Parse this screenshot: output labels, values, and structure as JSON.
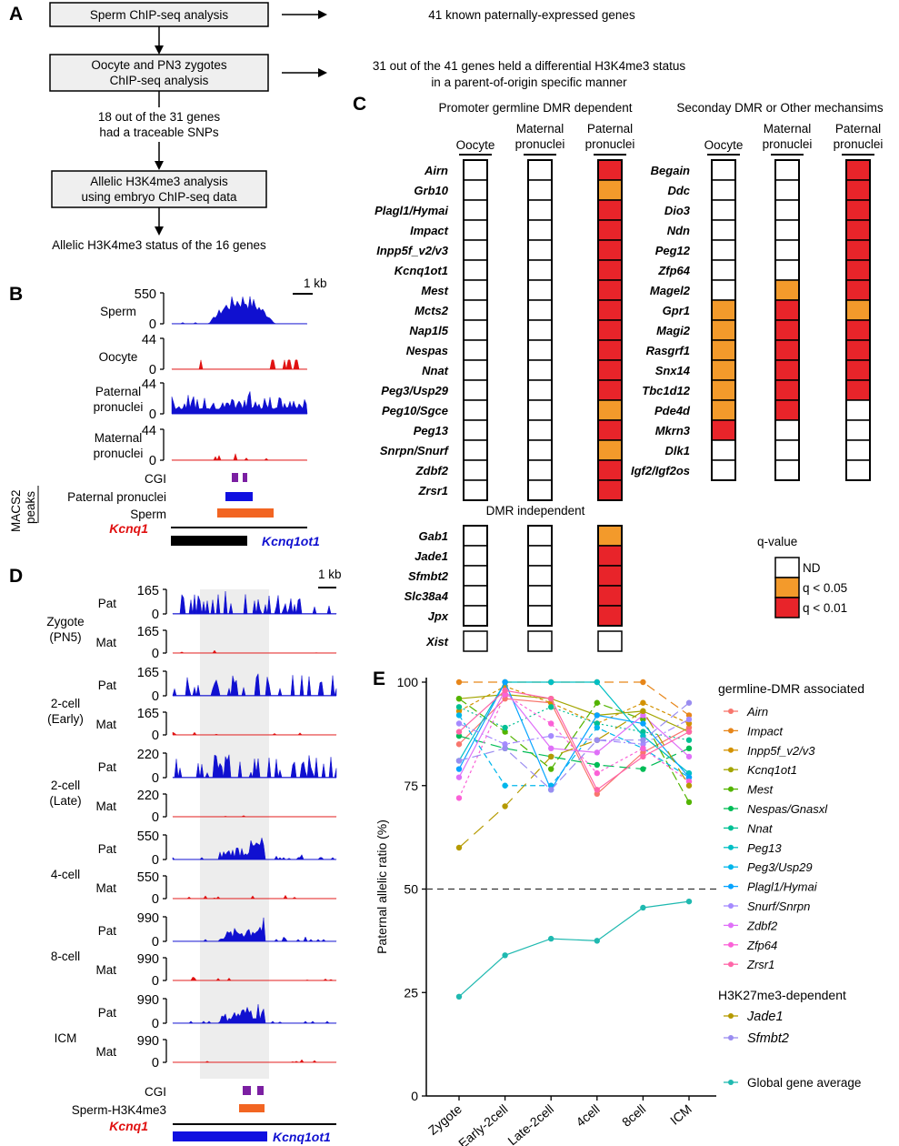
{
  "panels": {
    "a": "A",
    "b": "B",
    "c": "C",
    "d": "D",
    "e": "E"
  },
  "panel_a": {
    "box1": "Sperm ChIP-seq analysis",
    "box2_l1": "Oocyte and PN3 zygotes",
    "box2_l2": "ChIP-seq analysis",
    "mid_l1": "18 out of the 31 genes",
    "mid_l2": "had a traceable SNPs",
    "box3_l1": "Allelic H3K4me3 analysis",
    "box3_l2": "using embryo ChIP-seq data",
    "bottom": "Allelic H3K4me3 status of the 16 genes",
    "res1": "41 known paternally-expressed genes",
    "res2_l1": "31 out of the 41 genes held a differential H3K4me3 status",
    "res2_l2": "in a parent-of-origin specific manner"
  },
  "panel_b": {
    "scale": "1 kb",
    "tracks": [
      {
        "label_l1": "Sperm",
        "label_l2": "",
        "max": "550",
        "min": "0",
        "color": "#1010d0"
      },
      {
        "label_l1": "Oocyte",
        "label_l2": "",
        "max": "44",
        "min": "0",
        "color": "#e01010"
      },
      {
        "label_l1": "Paternal",
        "label_l2": "pronuclei",
        "max": "44",
        "min": "0",
        "color": "#1010d0"
      },
      {
        "label_l1": "Maternal",
        "label_l2": "pronuclei",
        "max": "44",
        "min": "0",
        "color": "#e01010"
      }
    ],
    "cgi": "CGI",
    "peak_pat": "Paternal pronuclei",
    "peak_sperm": "Sperm",
    "macs_l1": "MACS2",
    "macs_l2": "peaks",
    "gene1": "Kcnq1",
    "gene2": "Kcnq1ot1"
  },
  "panel_c": {
    "left_title": "Promoter germline DMR dependent",
    "right_title": "Seconday DMR or Other mechansims",
    "col1": "Oocyte",
    "col2_l1": "Maternal",
    "col2_l2": "pronuclei",
    "col3_l1": "Paternal",
    "col3_l2": "pronuclei",
    "left_genes": [
      "Airn",
      "Grb10",
      "Plagl1/Hymai",
      "Impact",
      "Inpp5f_v2/v3",
      "Kcnq1ot1",
      "Mest",
      "Mcts2",
      "Nap1l5",
      "Nespas",
      "Nnat",
      "Peg3/Usp29",
      "Peg10/Sgce",
      "Peg13",
      "Snrpn/Snurf",
      "Zdbf2",
      "Zrsr1"
    ],
    "left_pat": [
      "r",
      "o",
      "r",
      "r",
      "r",
      "r",
      "r",
      "r",
      "r",
      "r",
      "r",
      "r",
      "o",
      "r",
      "o",
      "r",
      "r"
    ],
    "indep_title": "DMR independent",
    "indep_genes": [
      "Gab1",
      "Jade1",
      "Sfmbt2",
      "Slc38a4",
      "Jpx"
    ],
    "indep_pat": [
      "o",
      "r",
      "r",
      "r",
      "r"
    ],
    "xist": "Xist",
    "right_genes": [
      "Begain",
      "Ddc",
      "Dio3",
      "Ndn",
      "Peg12",
      "Zfp64",
      "Magel2",
      "Gpr1",
      "Magi2",
      "Rasgrf1",
      "Snx14",
      "Tbc1d12",
      "Pde4d",
      "Mkrn3",
      "Dlk1",
      "Igf2/Igf2os"
    ],
    "right_ooc": [
      "w",
      "w",
      "w",
      "w",
      "w",
      "w",
      "w",
      "o",
      "o",
      "o",
      "o",
      "o",
      "o",
      "r",
      "w",
      "w"
    ],
    "right_mat": [
      "w",
      "w",
      "w",
      "w",
      "w",
      "w",
      "o",
      "r",
      "r",
      "r",
      "r",
      "r",
      "r",
      "w",
      "w",
      "w"
    ],
    "right_pat": [
      "r",
      "r",
      "r",
      "r",
      "r",
      "r",
      "r",
      "o",
      "r",
      "r",
      "r",
      "r",
      "w",
      "w",
      "w",
      "w"
    ],
    "legend_title": "q-value",
    "legend_nd": "ND",
    "legend_q05": "q < 0.05",
    "legend_q01": "q < 0.01",
    "colors": {
      "w": "#ffffff",
      "o": "#f39a2b",
      "r": "#e8242a"
    }
  },
  "panel_d": {
    "scale": "1 kb",
    "stages": [
      {
        "name_l1": "Zygote",
        "name_l2": "(PN5)",
        "max": "165"
      },
      {
        "name_l1": "2-cell",
        "name_l2": "(Early)",
        "max": "165"
      },
      {
        "name_l1": "2-cell",
        "name_l2": "(Late)",
        "max": "220"
      },
      {
        "name_l1": "4-cell",
        "name_l2": "",
        "max": "550"
      },
      {
        "name_l1": "8-cell",
        "name_l2": "",
        "max": "990"
      },
      {
        "name_l1": "ICM",
        "name_l2": "",
        "max": "990"
      }
    ],
    "pat": "Pat",
    "mat": "Mat",
    "zero": "0",
    "cgi": "CGI",
    "sperm_peak": "Sperm-H3K4me3",
    "gene1": "Kcnq1",
    "gene2": "Kcnq1ot1"
  },
  "chart_data": {
    "type": "line",
    "title": "",
    "xlabel": "",
    "ylabel": "Paternal allelic ratio (%)",
    "categories": [
      "Zygote",
      "Early-2cell",
      "Late-2cell",
      "4cell",
      "8cell",
      "ICM"
    ],
    "ylim": [
      0,
      100
    ],
    "yticks": [
      "0",
      "25",
      "50",
      "75",
      "100"
    ],
    "reference_line": 50,
    "legend_group1": "germline-DMR associated",
    "legend_group2": "H3K27me3-dependent",
    "series": [
      {
        "name": "Airn",
        "color": "#f8766d",
        "values": [
          85,
          96,
          95,
          73,
          83,
          89
        ]
      },
      {
        "name": "Impact",
        "color": "#e7861a",
        "values": [
          100,
          100,
          100,
          100,
          100,
          92
        ]
      },
      {
        "name": "Inpp5f_v2/v3",
        "color": "#d39200",
        "values": [
          93,
          99,
          95,
          90,
          95,
          90
        ]
      },
      {
        "name": "Kcnq1ot1",
        "color": "#a3a500",
        "values": [
          96,
          97,
          96,
          92,
          93,
          88
        ]
      },
      {
        "name": "Mest",
        "color": "#53b400",
        "values": [
          96,
          88,
          79,
          95,
          91,
          71
        ]
      },
      {
        "name": "Nespas/Gnasxl",
        "color": "#00bc56",
        "values": [
          87,
          84,
          82,
          80,
          79,
          84
        ]
      },
      {
        "name": "Nnat",
        "color": "#00c094",
        "values": [
          94,
          89,
          94,
          90,
          88,
          86
        ]
      },
      {
        "name": "Peg13",
        "color": "#00bfc4",
        "values": [
          81,
          100,
          100,
          100,
          87,
          78
        ]
      },
      {
        "name": "Peg3/Usp29",
        "color": "#00b6eb",
        "values": [
          92,
          75,
          75,
          89,
          84,
          77
        ]
      },
      {
        "name": "Plagl1/Hymai",
        "color": "#06a4ff",
        "values": [
          79,
          100,
          74,
          92,
          90,
          77
        ]
      },
      {
        "name": "Snurf/Snrpn",
        "color": "#a58aff",
        "values": [
          90,
          85,
          87,
          86,
          85,
          91
        ]
      },
      {
        "name": "Zdbf2",
        "color": "#df70f8",
        "values": [
          77,
          98,
          84,
          83,
          92,
          82
        ]
      },
      {
        "name": "Zfp64",
        "color": "#fb61d7",
        "values": [
          72,
          97,
          90,
          78,
          84,
          76
        ]
      },
      {
        "name": "Zrsr1",
        "color": "#ff66a8",
        "values": [
          88,
          98,
          96,
          74,
          82,
          88
        ]
      },
      {
        "name": "Jade1",
        "color": "#b59a00",
        "values": [
          60,
          70,
          82,
          86,
          93,
          75
        ]
      },
      {
        "name": "Sfmbt2",
        "color": "#9a8df0",
        "values": [
          81,
          84,
          74,
          86,
          86,
          95
        ]
      },
      {
        "name": "Global gene average",
        "color": "#1fb9b0",
        "values": [
          24,
          34,
          38,
          37.5,
          45.5,
          47
        ]
      }
    ]
  }
}
